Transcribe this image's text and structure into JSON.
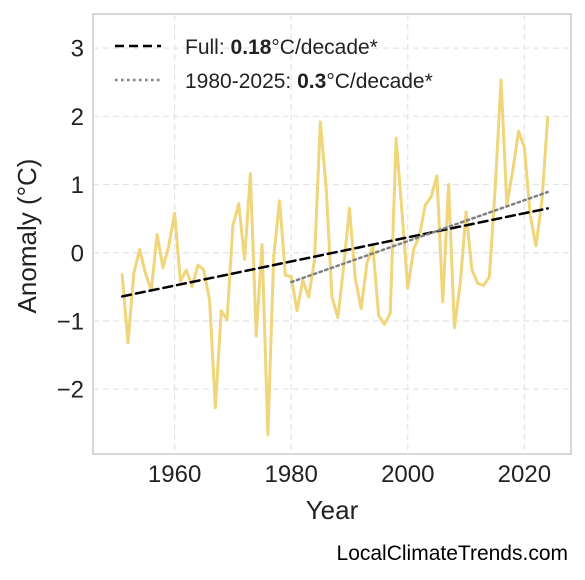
{
  "chart_data": {
    "type": "line",
    "xlabel": "Year",
    "ylabel": "Anomaly (°C)",
    "xlim": [
      1946,
      2028
    ],
    "ylim": [
      -2.95,
      3.5
    ],
    "x_ticks": [
      1960,
      1980,
      2000,
      2020
    ],
    "x_tick_labels": [
      "1960",
      "1980",
      "2000",
      "2020"
    ],
    "y_ticks": [
      -2,
      -1,
      0,
      1,
      2,
      3
    ],
    "y_tick_labels": [
      "−2",
      "−1",
      "0",
      "1",
      "2",
      "3"
    ],
    "grid": true,
    "legend_position": "top-left",
    "series": [
      {
        "color": "#f0d57a",
        "style": "solid",
        "x": [
          1951,
          1952,
          1953,
          1954,
          1955,
          1956,
          1957,
          1958,
          1959,
          1960,
          1961,
          1962,
          1963,
          1964,
          1965,
          1966,
          1967,
          1968,
          1969,
          1970,
          1971,
          1972,
          1973,
          1974,
          1975,
          1976,
          1977,
          1978,
          1979,
          1980,
          1981,
          1982,
          1983,
          1984,
          1985,
          1986,
          1987,
          1988,
          1989,
          1990,
          1991,
          1992,
          1993,
          1994,
          1995,
          1996,
          1997,
          1998,
          1999,
          2000,
          2001,
          2002,
          2003,
          2004,
          2005,
          2006,
          2007,
          2008,
          2009,
          2010,
          2011,
          2012,
          2013,
          2014,
          2015,
          2016,
          2017,
          2018,
          2019,
          2020,
          2021,
          2022,
          2023,
          2024
        ],
        "y": [
          -0.32,
          -1.32,
          -0.3,
          0.05,
          -0.3,
          -0.55,
          0.27,
          -0.22,
          0.1,
          0.58,
          -0.42,
          -0.25,
          -0.5,
          -0.18,
          -0.25,
          -0.7,
          -2.27,
          -0.85,
          -0.98,
          0.4,
          0.72,
          -0.1,
          1.16,
          -1.22,
          0.12,
          -2.67,
          -0.05,
          0.76,
          -0.33,
          -0.35,
          -0.85,
          -0.4,
          -0.65,
          -0.1,
          1.92,
          0.95,
          -0.65,
          -0.95,
          -0.2,
          0.65,
          -0.38,
          -0.82,
          -0.15,
          0.1,
          -0.92,
          -1.05,
          -0.88,
          1.68,
          0.6,
          -0.52,
          0.05,
          0.25,
          0.7,
          0.82,
          1.13,
          -0.72,
          1.0,
          -1.1,
          -0.45,
          0.6,
          -0.25,
          -0.45,
          -0.48,
          -0.35,
          0.95,
          2.53,
          0.7,
          1.2,
          1.78,
          1.55,
          0.55,
          0.1,
          0.75,
          1.98
        ]
      },
      {
        "name": "Full",
        "rate": "0.18",
        "unit": "°C/decade*",
        "color": "#000000",
        "style": "dashed",
        "x": [
          1951,
          2024
        ],
        "y": [
          -0.64,
          0.65
        ]
      },
      {
        "name": "1980-2025",
        "rate": "0.3",
        "unit": "°C/decade*",
        "color": "#808080",
        "style": "dotted",
        "x": [
          1980,
          2024
        ],
        "y": [
          -0.43,
          0.89
        ]
      }
    ]
  },
  "legend": {
    "full_prefix": "Full: ",
    "full_rate": "0.18",
    "full_unit": "°C/decade*",
    "recent_prefix": "1980-2025: ",
    "recent_rate": "0.3",
    "recent_unit": "°C/decade*"
  },
  "credit": "LocalClimateTrends.com"
}
